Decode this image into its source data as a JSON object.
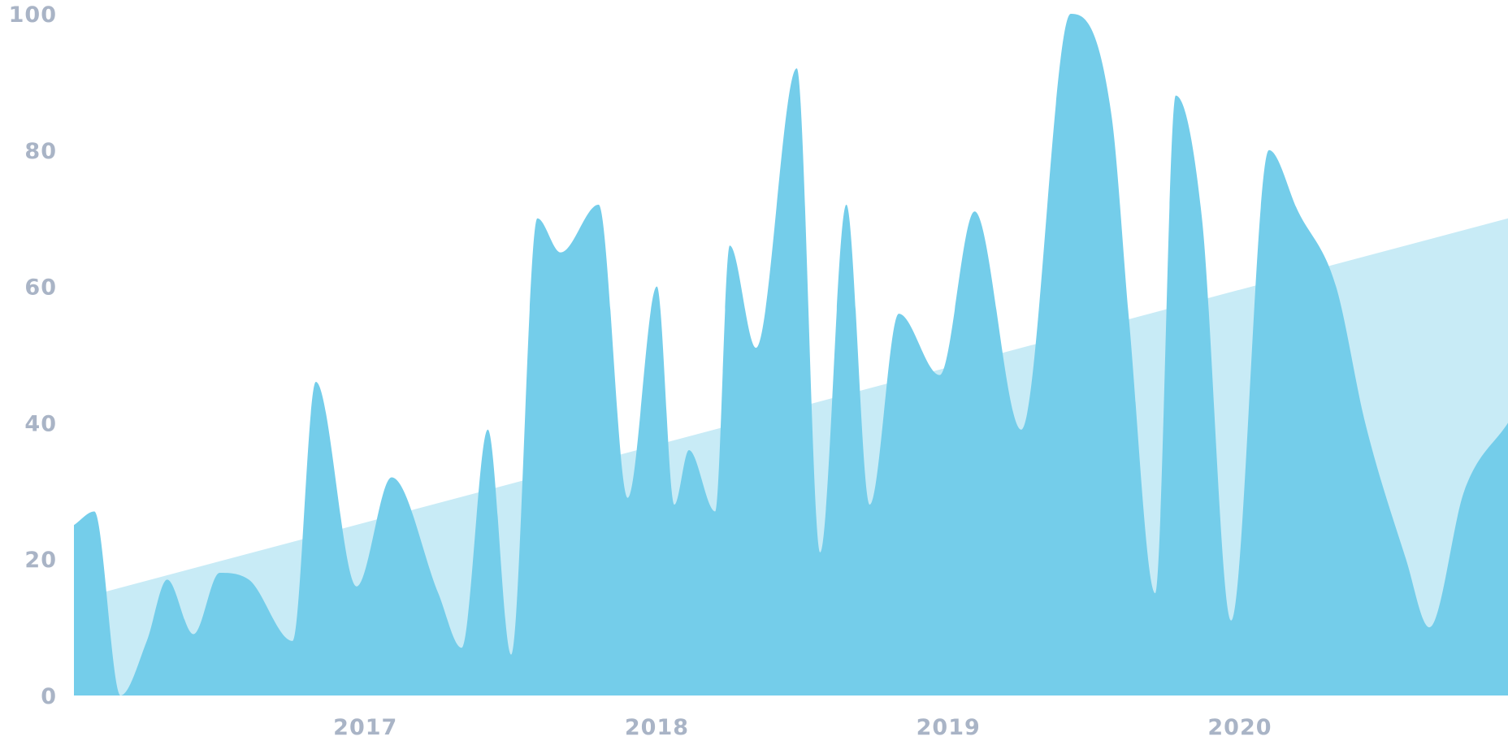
{
  "chart_data": {
    "type": "area",
    "title": "",
    "xlabel": "",
    "ylabel": "",
    "x_ticks": [
      "2017",
      "2018",
      "2019",
      "2020"
    ],
    "y_ticks": [
      "0",
      "20",
      "40",
      "60",
      "80",
      "100"
    ],
    "xlim": [
      2016.0,
      2020.92
    ],
    "ylim": [
      0,
      100
    ],
    "grid": false,
    "legend": "none",
    "colors": {
      "series": "#74cdea",
      "trend": "#c8ebf6",
      "ticks": "#a9b4c6"
    },
    "series": [
      {
        "x": [
          2016.0,
          2016.07,
          2016.16,
          2016.25,
          2016.32,
          2016.41,
          2016.5,
          2016.6,
          2016.75,
          2016.83,
          2016.97,
          2017.09,
          2017.25,
          2017.33,
          2017.42,
          2017.5,
          2017.59,
          2017.67,
          2017.8,
          2017.9,
          2018.0,
          2018.06,
          2018.11,
          2018.2,
          2018.25,
          2018.34,
          2018.48,
          2018.56,
          2018.65,
          2018.73,
          2018.83,
          2018.97,
          2019.09,
          2019.25,
          2019.42,
          2019.56,
          2019.62,
          2019.71,
          2019.78,
          2019.87,
          2019.97,
          2020.1,
          2020.2,
          2020.33,
          2020.43,
          2020.57,
          2020.65,
          2020.77,
          2020.92
        ],
        "values": [
          25,
          27,
          0,
          8,
          17,
          9,
          18,
          17,
          8,
          46,
          16,
          32,
          15,
          7,
          39,
          6,
          70,
          65,
          72,
          29,
          60,
          28,
          36,
          27,
          66,
          51,
          92,
          21,
          72,
          28,
          56,
          47,
          71,
          39,
          100,
          85,
          55,
          15,
          88,
          70,
          11,
          80,
          71,
          60,
          40,
          20,
          10,
          30,
          40
        ]
      }
    ],
    "trend": {
      "x": [
        2016.0,
        2020.92
      ],
      "values": [
        14,
        70
      ]
    }
  }
}
